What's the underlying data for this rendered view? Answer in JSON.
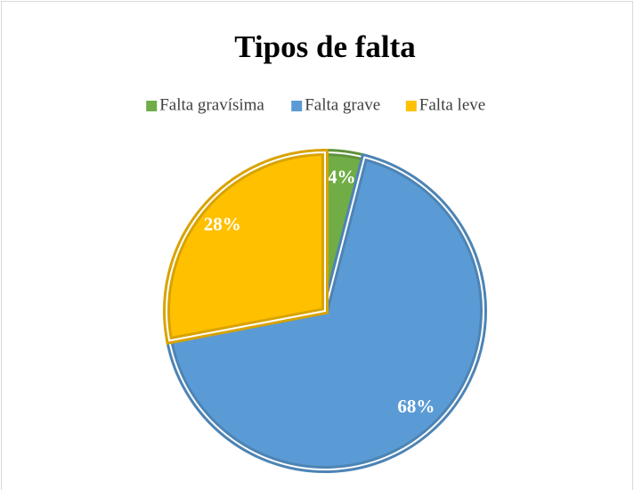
{
  "chart_data": {
    "type": "pie",
    "title": "Tipos de falta",
    "categories": [
      "Falta gravísima",
      "Falta grave",
      "Falta leve"
    ],
    "values": [
      4,
      68,
      28
    ],
    "value_labels": [
      "4%",
      "68%",
      "28%"
    ],
    "colors": [
      "#70ad47",
      "#5b9bd5",
      "#ffc000"
    ],
    "legend": "top"
  }
}
